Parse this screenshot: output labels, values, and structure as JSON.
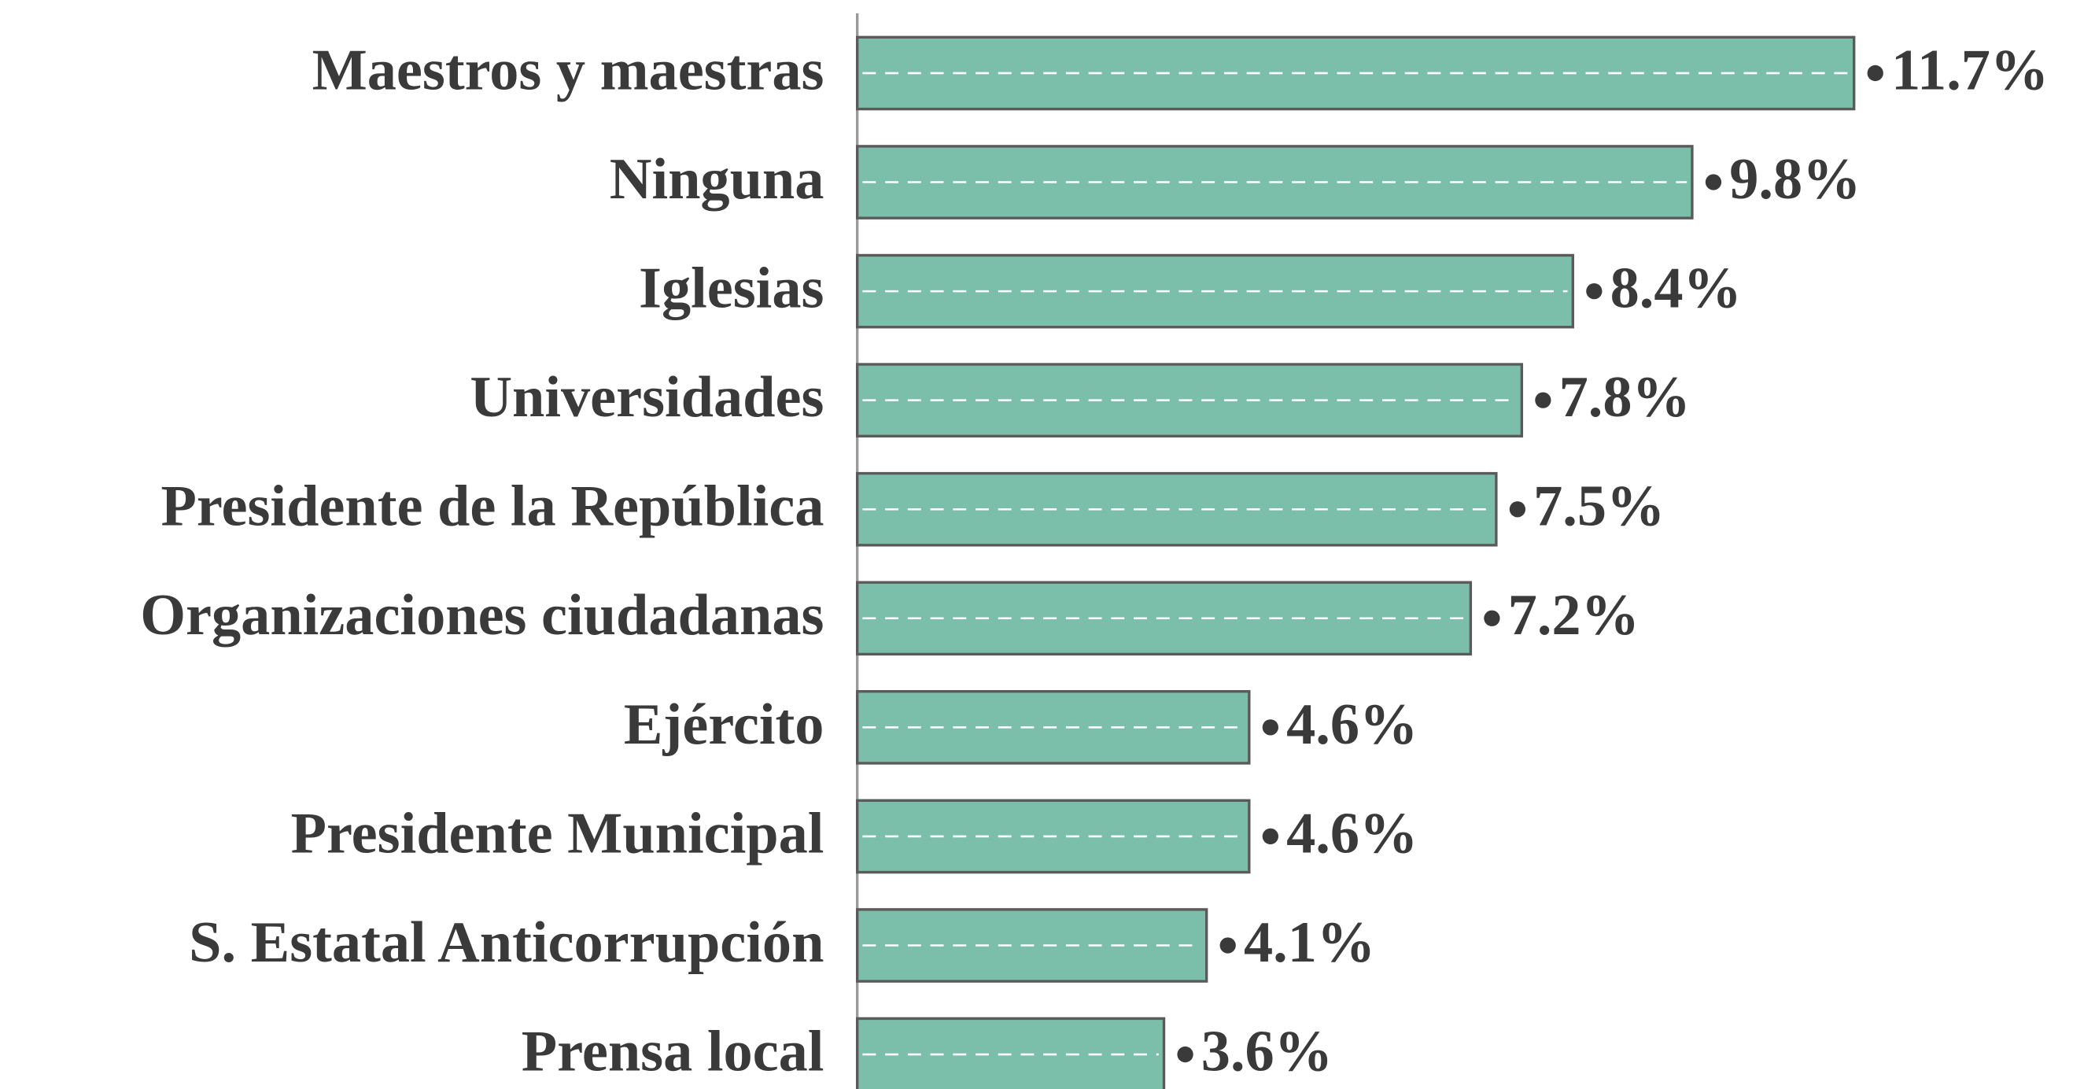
{
  "chart_data": {
    "type": "barh",
    "categories": [
      "Maestros y maestras",
      "Ninguna",
      "Iglesias",
      "Universidades",
      "Presidente de la República",
      "Organizaciones ciudadanas",
      "Ejército",
      "Presidente Municipal",
      "S. Estatal Anticorrupción",
      "Prensa local"
    ],
    "values": [
      11.7,
      9.8,
      8.4,
      7.8,
      7.5,
      7.2,
      4.6,
      4.6,
      4.1,
      3.6
    ],
    "value_labels": [
      "11.7%",
      "9.8%",
      "8.4%",
      "7.8%",
      "7.5%",
      "7.2%",
      "4.6%",
      "4.6%",
      "4.1%",
      "3.6%"
    ],
    "color": "#7bbfaa"
  }
}
